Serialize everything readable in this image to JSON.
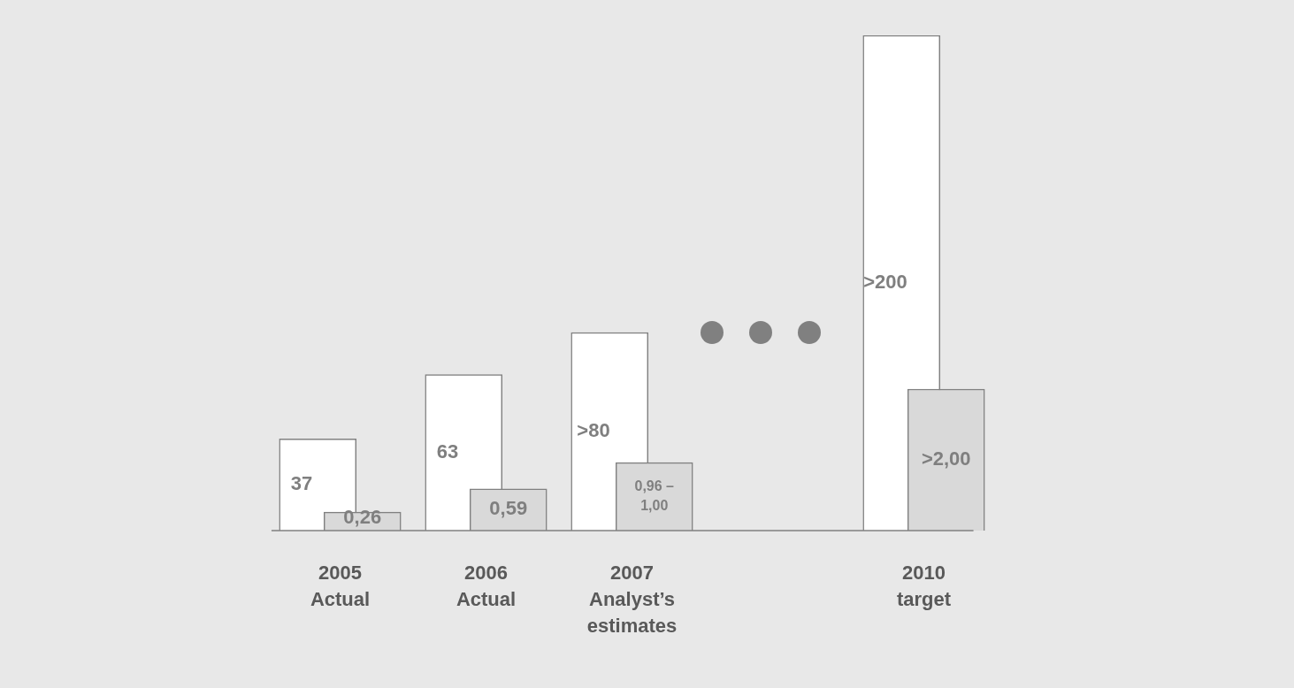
{
  "chart_data": {
    "type": "bar",
    "legend": false,
    "tick_labels": false,
    "categories": [
      "2005\nActual",
      "2006\nActual",
      "2007\nAnalyst’s\nestimates",
      null,
      "2010\ntarget"
    ],
    "series": [
      {
        "color": "#ffffff",
        "values": [
          37,
          63,
          80,
          null,
          200
        ],
        "value_labels": [
          "37",
          "63",
          ">80",
          null,
          ">200"
        ]
      },
      {
        "color": "#d9d9d9",
        "axis": "y2",
        "values": [
          0.26,
          0.59,
          0.96,
          null,
          2.0
        ],
        "value_labels": [
          "0,26",
          "0,59",
          "0,96 – 1,00",
          null,
          ">2,00"
        ]
      }
    ]
  }
}
